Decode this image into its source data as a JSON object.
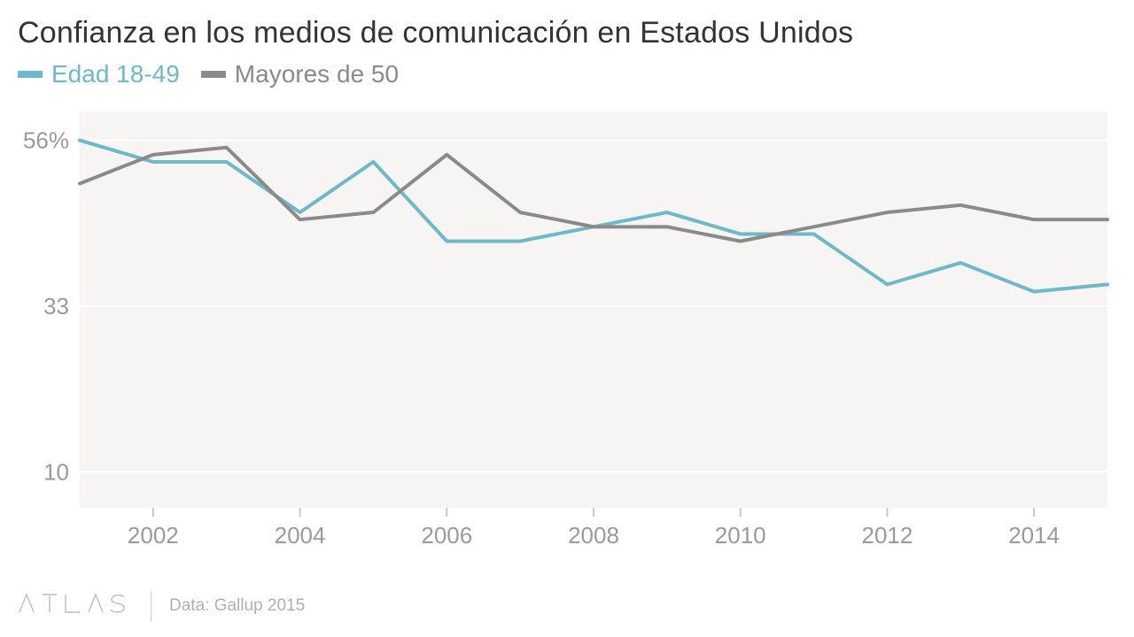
{
  "title": "Confianza en los medios de comunicación en Estados Unidos",
  "legend": {
    "series1": {
      "label": "Edad 18-49",
      "color": "#6cb9c9"
    },
    "series2": {
      "label": "Mayores de 50",
      "color": "#8a8a8a"
    }
  },
  "footer": {
    "logo": "A T L A S",
    "source": "Data: Gallup 2015"
  },
  "chart": {
    "type": "line",
    "background_color": "#ffffff",
    "plot_background": "#f6f5f3",
    "grid_color": "#ffffff",
    "axis_label_color": "#9a9a9a",
    "axis_font_size": 26,
    "line_width": 4,
    "x": {
      "years": [
        2001,
        2002,
        2003,
        2004,
        2005,
        2006,
        2007,
        2008,
        2009,
        2010,
        2011,
        2012,
        2013,
        2014,
        2015
      ],
      "ticks": [
        2002,
        2004,
        2006,
        2008,
        2010,
        2012,
        2014
      ],
      "min": 2001,
      "max": 2015
    },
    "y": {
      "ticks": [
        10,
        33,
        56
      ],
      "tick_labels": [
        "10",
        "33",
        "56%"
      ],
      "min": 5,
      "max": 60
    },
    "series": [
      {
        "name": "Edad 18-49",
        "color": "#6cb9c9",
        "values": [
          56,
          53,
          53,
          46,
          53,
          42,
          42,
          44,
          46,
          43,
          43,
          36,
          39,
          35,
          36
        ]
      },
      {
        "name": "Mayores de 50",
        "color": "#8a8a8a",
        "values": [
          50,
          54,
          55,
          45,
          46,
          54,
          46,
          44,
          44,
          42,
          44,
          46,
          47,
          45,
          45
        ]
      }
    ]
  }
}
